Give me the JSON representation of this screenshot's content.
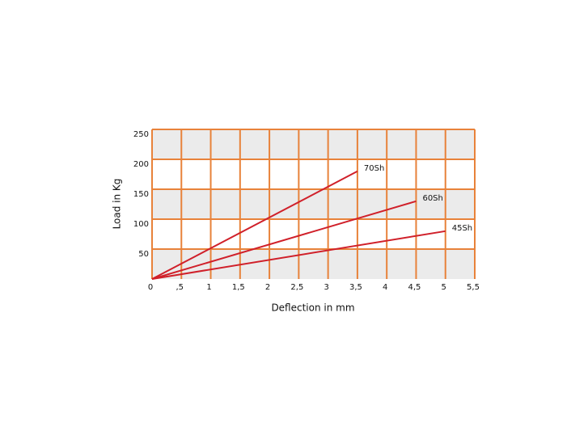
{
  "chart_data": {
    "type": "line",
    "x_label": "Deflection in mm",
    "y_label": "Load in Kg",
    "xlim": [
      0,
      5.5
    ],
    "ylim": [
      0,
      250
    ],
    "xticks": [
      0,
      {
        "value": 0.5,
        "label": ",5"
      },
      1,
      {
        "value": 1.5,
        "label": "1,5"
      },
      2,
      {
        "value": 2.5,
        "label": "2,5"
      },
      3,
      {
        "value": 3.5,
        "label": "3,5"
      },
      4,
      {
        "value": 4.5,
        "label": "4,5"
      },
      5,
      {
        "value": 5.5,
        "label": "5,5"
      }
    ],
    "yticks": [
      50,
      100,
      150,
      200,
      250
    ],
    "grid": true,
    "grid_color": "#e8823a",
    "band_color": "#ebebeb",
    "series": [
      {
        "name": "70Sh",
        "color": "#d0202a",
        "x": [
          0,
          3.5
        ],
        "values": [
          0,
          180
        ]
      },
      {
        "name": "60Sh",
        "color": "#d0202a",
        "x": [
          0,
          4.5
        ],
        "values": [
          0,
          130
        ]
      },
      {
        "name": "45Sh",
        "color": "#d0202a",
        "x": [
          0,
          5
        ],
        "values": [
          0,
          80
        ]
      }
    ]
  }
}
